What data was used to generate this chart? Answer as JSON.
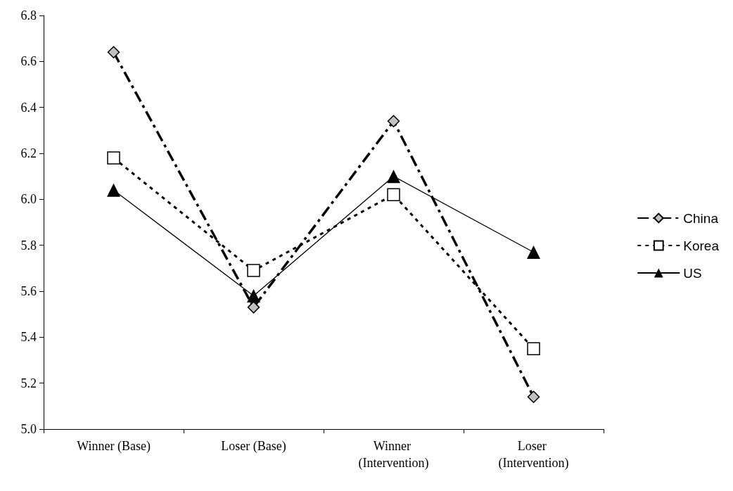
{
  "chart_data": {
    "type": "line",
    "categories": [
      "Winner (Base)",
      "Loser (Base)",
      "Winner (Intervention)",
      "Loser (Intervention)"
    ],
    "series": [
      {
        "name": "China",
        "color": "#000000",
        "marker": "diamond",
        "line_style": "dashed",
        "values": [
          6.64,
          5.53,
          6.34,
          5.14
        ]
      },
      {
        "name": "Korea",
        "color": "#000000",
        "marker": "square",
        "line_style": "dotted",
        "values": [
          6.18,
          5.69,
          6.02,
          5.35
        ]
      },
      {
        "name": "US",
        "color": "#000000",
        "marker": "triangle",
        "line_style": "solid",
        "values": [
          6.04,
          5.58,
          6.1,
          5.77
        ]
      }
    ],
    "ylim": [
      5.0,
      6.8
    ],
    "yticks": [
      {
        "value": 5,
        "label": "5.0"
      },
      5.2,
      5.4,
      5.6,
      5.8,
      {
        "value": 6,
        "label": "6.0"
      },
      6.2,
      6.4,
      6.6,
      6.8
    ],
    "grid": false,
    "legend": "right"
  }
}
